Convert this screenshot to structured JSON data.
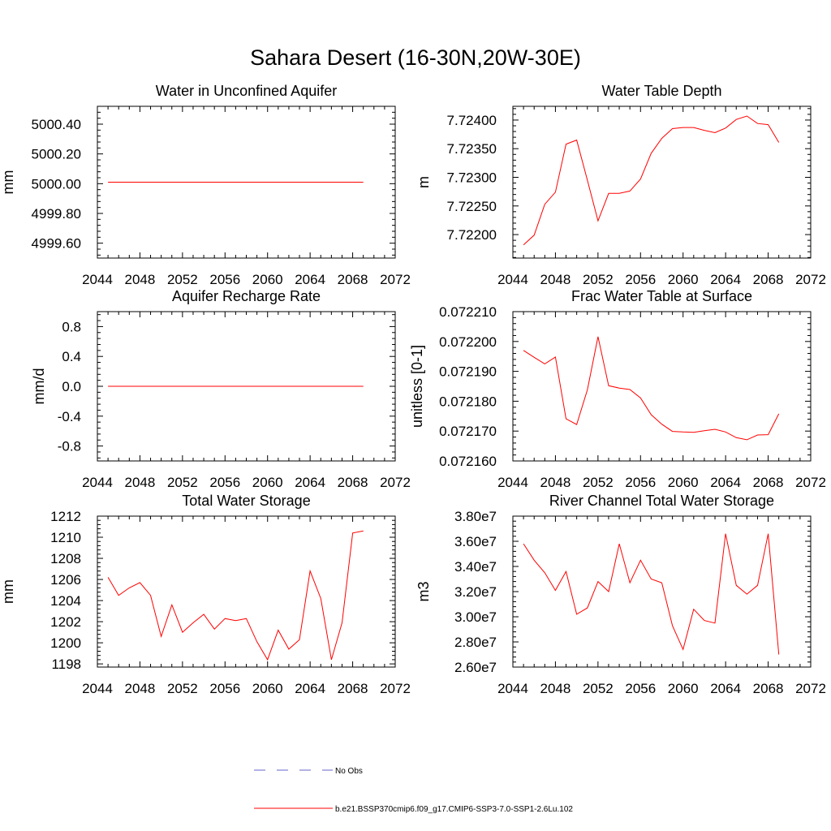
{
  "figure": {
    "title": "Sahara Desert (16-30N,20W-30E)"
  },
  "legend": [
    {
      "label": "No Obs",
      "color": "#6666cc",
      "dash": true
    },
    {
      "label": "b.e21.BSSP370cmip6.f09_g17.CMIP6-SSP3-7.0-SSP1-2.6Lu.102",
      "color": "#ff0000",
      "dash": false
    }
  ],
  "chart_data": [
    {
      "type": "line",
      "title": "Water in Unconfined Aquifer",
      "xlabel": "",
      "ylabel": "mm",
      "xlim": [
        2044,
        2072
      ],
      "ylim": [
        4999.5,
        5000.52
      ],
      "xticks": [
        "2044",
        "2048",
        "2052",
        "2056",
        "2060",
        "2064",
        "2068",
        "2072"
      ],
      "yticks": [
        {
          "v": 5000.4,
          "label": "5000.40"
        },
        {
          "v": 5000.2,
          "label": "5000.20"
        },
        {
          "v": 5000.0,
          "label": "5000.00"
        },
        {
          "v": 4999.8,
          "label": "4999.80"
        },
        {
          "v": 4999.6,
          "label": "4999.60"
        }
      ],
      "series": [
        {
          "color": "#ff0000",
          "x": [
            2045,
            2046,
            2047,
            2048,
            2049,
            2050,
            2051,
            2052,
            2053,
            2054,
            2055,
            2056,
            2057,
            2058,
            2059,
            2060,
            2061,
            2062,
            2063,
            2064,
            2065,
            2066,
            2067,
            2068,
            2069
          ],
          "values": [
            5000.01,
            5000.01,
            5000.01,
            5000.01,
            5000.01,
            5000.01,
            5000.01,
            5000.01,
            5000.01,
            5000.01,
            5000.01,
            5000.01,
            5000.01,
            5000.01,
            5000.01,
            5000.01,
            5000.01,
            5000.01,
            5000.01,
            5000.01,
            5000.01,
            5000.01,
            5000.01,
            5000.01,
            5000.01
          ]
        }
      ]
    },
    {
      "type": "line",
      "title": "Water Table Depth",
      "xlabel": "",
      "ylabel": "m",
      "xlim": [
        2044,
        2072
      ],
      "ylim": [
        7.72159,
        7.72424
      ],
      "xticks": [
        "2044",
        "2048",
        "2052",
        "2056",
        "2060",
        "2064",
        "2068",
        "2072"
      ],
      "yticks": [
        {
          "v": 7.724,
          "label": "7.72400"
        },
        {
          "v": 7.7235,
          "label": "7.72350"
        },
        {
          "v": 7.723,
          "label": "7.72300"
        },
        {
          "v": 7.7225,
          "label": "7.72250"
        },
        {
          "v": 7.722,
          "label": "7.72200"
        }
      ],
      "series": [
        {
          "color": "#ff0000",
          "x": [
            2045,
            2046,
            2047,
            2048,
            2049,
            2050,
            2051,
            2052,
            2053,
            2054,
            2055,
            2056,
            2057,
            2058,
            2059,
            2060,
            2061,
            2062,
            2063,
            2064,
            2065,
            2066,
            2067,
            2068,
            2069
          ],
          "values": [
            7.72182,
            7.72199,
            7.72253,
            7.72274,
            7.72358,
            7.72365,
            7.72295,
            7.72224,
            7.72272,
            7.72272,
            7.72276,
            7.72297,
            7.72342,
            7.72368,
            7.72385,
            7.72387,
            7.72387,
            7.72382,
            7.72378,
            7.72386,
            7.72401,
            7.72407,
            7.72394,
            7.72392,
            7.72361
          ]
        }
      ]
    },
    {
      "type": "line",
      "title": "Aquifer Recharge Rate",
      "xlabel": "",
      "ylabel": "mm/d",
      "xlim": [
        2044,
        2072
      ],
      "ylim": [
        -1.0,
        1.0
      ],
      "xticks": [
        "2044",
        "2048",
        "2052",
        "2056",
        "2060",
        "2064",
        "2068",
        "2072"
      ],
      "yticks": [
        {
          "v": 0.8,
          "label": "0.8"
        },
        {
          "v": 0.4,
          "label": "0.4"
        },
        {
          "v": 0.0,
          "label": "0.0"
        },
        {
          "v": -0.4,
          "label": "-0.4"
        },
        {
          "v": -0.8,
          "label": "-0.8"
        }
      ],
      "series": [
        {
          "color": "#ff0000",
          "x": [
            2045,
            2046,
            2047,
            2048,
            2049,
            2050,
            2051,
            2052,
            2053,
            2054,
            2055,
            2056,
            2057,
            2058,
            2059,
            2060,
            2061,
            2062,
            2063,
            2064,
            2065,
            2066,
            2067,
            2068,
            2069
          ],
          "values": [
            0,
            0,
            0,
            0,
            0,
            0,
            0,
            0,
            0,
            0,
            0,
            0,
            0,
            0,
            0,
            0,
            0,
            0,
            0,
            0,
            0,
            0,
            0,
            0,
            0
          ]
        }
      ]
    },
    {
      "type": "line",
      "title": "Frac Water Table at Surface",
      "xlabel": "",
      "ylabel": "unitless [0-1]",
      "xlim": [
        2044,
        2072
      ],
      "ylim": [
        0.07216,
        0.07221
      ],
      "xticks": [
        "2044",
        "2048",
        "2052",
        "2056",
        "2060",
        "2064",
        "2068",
        "2072"
      ],
      "yticks": [
        {
          "v": 0.07221,
          "label": "0.072210"
        },
        {
          "v": 0.0722,
          "label": "0.072200"
        },
        {
          "v": 0.07219,
          "label": "0.072190"
        },
        {
          "v": 0.07218,
          "label": "0.072180"
        },
        {
          "v": 0.07217,
          "label": "0.072170"
        },
        {
          "v": 0.07216,
          "label": "0.072160"
        }
      ],
      "series": [
        {
          "color": "#ff0000",
          "x": [
            2045,
            2046,
            2047,
            2048,
            2049,
            2050,
            2051,
            2052,
            2053,
            2054,
            2055,
            2056,
            2057,
            2058,
            2059,
            2060,
            2061,
            2062,
            2063,
            2064,
            2065,
            2066,
            2067,
            2068,
            2069
          ],
          "values": [
            0.072197,
            0.0721947,
            0.0721925,
            0.0721948,
            0.0721741,
            0.0721722,
            0.0721838,
            0.0722016,
            0.0721852,
            0.0721844,
            0.0721839,
            0.0721811,
            0.0721755,
            0.0721723,
            0.0721699,
            0.0721697,
            0.0721696,
            0.0721701,
            0.0721706,
            0.0721697,
            0.0721678,
            0.0721671,
            0.0721687,
            0.0721688,
            0.0721758
          ]
        }
      ]
    },
    {
      "type": "line",
      "title": "Total Water Storage",
      "xlabel": "",
      "ylabel": "mm",
      "xlim": [
        2044,
        2072
      ],
      "ylim": [
        1197.7,
        1212.0
      ],
      "xticks": [
        "2044",
        "2048",
        "2052",
        "2056",
        "2060",
        "2064",
        "2068",
        "2072"
      ],
      "yticks": [
        {
          "v": 1212,
          "label": "1212"
        },
        {
          "v": 1210,
          "label": "1210"
        },
        {
          "v": 1208,
          "label": "1208"
        },
        {
          "v": 1206,
          "label": "1206"
        },
        {
          "v": 1204,
          "label": "1204"
        },
        {
          "v": 1202,
          "label": "1202"
        },
        {
          "v": 1200,
          "label": "1200"
        },
        {
          "v": 1198,
          "label": "1198"
        }
      ],
      "series": [
        {
          "color": "#ff0000",
          "x": [
            2045,
            2046,
            2047,
            2048,
            2049,
            2050,
            2051,
            2052,
            2053,
            2054,
            2055,
            2056,
            2057,
            2058,
            2059,
            2060,
            2061,
            2062,
            2063,
            2064,
            2065,
            2066,
            2067,
            2068,
            2069
          ],
          "values": [
            1206.2,
            1204.5,
            1205.2,
            1205.7,
            1204.5,
            1200.6,
            1203.6,
            1201.0,
            1201.9,
            1202.7,
            1201.3,
            1202.3,
            1202.1,
            1202.3,
            1200.1,
            1198.4,
            1201.2,
            1199.4,
            1200.3,
            1206.8,
            1204.2,
            1198.4,
            1201.9,
            1210.4,
            1210.6
          ]
        }
      ]
    },
    {
      "type": "line",
      "title": "River Channel Total Water Storage",
      "xlabel": "",
      "ylabel": "m3",
      "xlim": [
        2044,
        2072
      ],
      "ylim": [
        26000000.0,
        38000000.0
      ],
      "xticks": [
        "2044",
        "2048",
        "2052",
        "2056",
        "2060",
        "2064",
        "2068",
        "2072"
      ],
      "yticks": [
        {
          "v": 38000000.0,
          "label": "3.80e7"
        },
        {
          "v": 36000000.0,
          "label": "3.60e7"
        },
        {
          "v": 34000000.0,
          "label": "3.40e7"
        },
        {
          "v": 32000000.0,
          "label": "3.20e7"
        },
        {
          "v": 30000000.0,
          "label": "3.00e7"
        },
        {
          "v": 28000000.0,
          "label": "2.80e7"
        },
        {
          "v": 26000000.0,
          "label": "2.60e7"
        }
      ],
      "series": [
        {
          "color": "#ff0000",
          "x": [
            2045,
            2046,
            2047,
            2048,
            2049,
            2050,
            2051,
            2052,
            2053,
            2054,
            2055,
            2056,
            2057,
            2058,
            2059,
            2060,
            2061,
            2062,
            2063,
            2064,
            2065,
            2066,
            2067,
            2068,
            2069
          ],
          "values": [
            35800000.0,
            34500000.0,
            33500000.0,
            32100000.0,
            33600000.0,
            30200000.0,
            30700000.0,
            32800000.0,
            32000000.0,
            35800000.0,
            32700000.0,
            34500000.0,
            33000000.0,
            32700000.0,
            29300000.0,
            27400000.0,
            30600000.0,
            29700000.0,
            29500000.0,
            36600000.0,
            32500000.0,
            31800000.0,
            32500000.0,
            36600000.0,
            27000000.0
          ]
        }
      ]
    }
  ]
}
